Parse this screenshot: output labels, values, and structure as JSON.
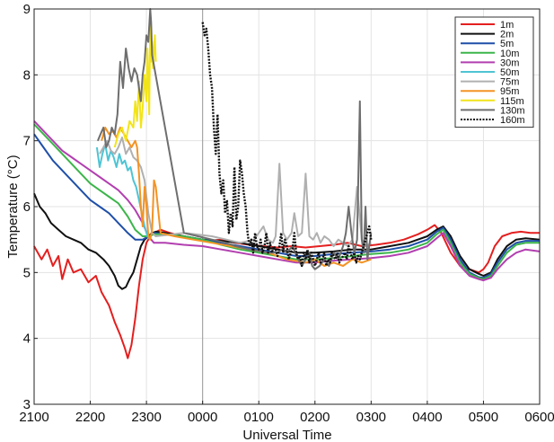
{
  "chart_data": {
    "type": "line",
    "xlabel": "Universal Time",
    "ylabel": "Temperature (°C)",
    "xlim": [
      0,
      540
    ],
    "ylim": [
      3,
      9
    ],
    "grid": true,
    "legend_placement": "top-right",
    "x_unit": "minutes after 2100 UT",
    "x_ticks": [
      {
        "value": 0,
        "label": "2100"
      },
      {
        "value": 60,
        "label": "2200"
      },
      {
        "value": 120,
        "label": "2300"
      },
      {
        "value": 180,
        "label": "0000"
      },
      {
        "value": 240,
        "label": "0100"
      },
      {
        "value": 300,
        "label": "0200"
      },
      {
        "value": 360,
        "label": "0300"
      },
      {
        "value": 420,
        "label": "0400"
      },
      {
        "value": 480,
        "label": "0500"
      },
      {
        "value": 540,
        "label": "0600"
      }
    ],
    "y_ticks": [
      3,
      4,
      5,
      6,
      7,
      8,
      9
    ],
    "vline_x": 180,
    "series": [
      {
        "name": "1m",
        "color": "#e41f1f",
        "dashed": false,
        "x": [
          0,
          8,
          14,
          20,
          26,
          30,
          36,
          42,
          50,
          58,
          66,
          72,
          80,
          86,
          92,
          97,
          100,
          104,
          108,
          112,
          116,
          120,
          124,
          128,
          135,
          145,
          160,
          175,
          185,
          200,
          215,
          230,
          245,
          260,
          275,
          290,
          305,
          320,
          335,
          350,
          365,
          380,
          395,
          410,
          420,
          428,
          435,
          445,
          455,
          465,
          475,
          480,
          485,
          492,
          500,
          510,
          520,
          530,
          540
        ],
        "y": [
          5.4,
          5.2,
          5.35,
          5.1,
          5.25,
          4.9,
          5.2,
          5.0,
          5.05,
          4.85,
          4.95,
          4.7,
          4.5,
          4.25,
          4.05,
          3.85,
          3.7,
          3.9,
          4.3,
          4.8,
          5.2,
          5.45,
          5.55,
          5.6,
          5.65,
          5.6,
          5.55,
          5.5,
          5.48,
          5.5,
          5.45,
          5.42,
          5.4,
          5.38,
          5.4,
          5.38,
          5.4,
          5.42,
          5.45,
          5.4,
          5.42,
          5.45,
          5.5,
          5.58,
          5.65,
          5.72,
          5.6,
          5.3,
          5.1,
          5.05,
          5.0,
          5.05,
          5.15,
          5.4,
          5.55,
          5.6,
          5.62,
          5.6,
          5.6
        ]
      },
      {
        "name": "2m",
        "color": "#111111",
        "dashed": false,
        "x": [
          0,
          6,
          12,
          18,
          26,
          34,
          42,
          50,
          58,
          66,
          74,
          80,
          86,
          90,
          94,
          98,
          102,
          106,
          110,
          114,
          118,
          122,
          126,
          130,
          140,
          160,
          180,
          200,
          220,
          240,
          260,
          280,
          300,
          320,
          340,
          360,
          380,
          400,
          420,
          430,
          437,
          445,
          455,
          465,
          475,
          480,
          488,
          495,
          505,
          515,
          525,
          540
        ],
        "y": [
          6.2,
          6.0,
          5.9,
          5.75,
          5.65,
          5.55,
          5.5,
          5.45,
          5.35,
          5.3,
          5.2,
          5.1,
          4.95,
          4.8,
          4.75,
          4.78,
          4.9,
          5.0,
          5.2,
          5.4,
          5.5,
          5.55,
          5.6,
          5.62,
          5.6,
          5.55,
          5.5,
          5.48,
          5.45,
          5.4,
          5.35,
          5.3,
          5.3,
          5.32,
          5.35,
          5.35,
          5.4,
          5.45,
          5.55,
          5.65,
          5.7,
          5.55,
          5.25,
          5.05,
          4.98,
          4.95,
          5.0,
          5.2,
          5.4,
          5.5,
          5.52,
          5.5
        ]
      },
      {
        "name": "5m",
        "color": "#1f4fa8",
        "dashed": false,
        "x": [
          0,
          10,
          20,
          30,
          40,
          50,
          60,
          70,
          80,
          90,
          100,
          108,
          116,
          122,
          128,
          140,
          160,
          180,
          200,
          220,
          240,
          260,
          280,
          300,
          320,
          340,
          360,
          380,
          400,
          420,
          430,
          437,
          445,
          455,
          465,
          475,
          480,
          488,
          495,
          505,
          515,
          525,
          540
        ],
        "y": [
          7.1,
          6.9,
          6.7,
          6.55,
          6.4,
          6.25,
          6.1,
          6.0,
          5.9,
          5.75,
          5.6,
          5.5,
          5.5,
          5.55,
          5.6,
          5.58,
          5.55,
          5.5,
          5.45,
          5.4,
          5.35,
          5.3,
          5.25,
          5.25,
          5.28,
          5.3,
          5.32,
          5.35,
          5.4,
          5.5,
          5.62,
          5.68,
          5.5,
          5.2,
          5.0,
          4.93,
          4.92,
          4.98,
          5.15,
          5.35,
          5.45,
          5.48,
          5.48
        ]
      },
      {
        "name": "10m",
        "color": "#3cb54a",
        "dashed": false,
        "x": [
          0,
          10,
          20,
          30,
          40,
          50,
          60,
          70,
          80,
          90,
          100,
          108,
          116,
          122,
          128,
          140,
          160,
          180,
          200,
          220,
          240,
          260,
          280,
          300,
          320,
          340,
          360,
          380,
          400,
          420,
          430,
          437,
          445,
          455,
          465,
          475,
          480,
          488,
          495,
          505,
          515,
          525,
          540
        ],
        "y": [
          7.25,
          7.1,
          6.95,
          6.8,
          6.65,
          6.5,
          6.35,
          6.25,
          6.15,
          6.05,
          5.85,
          5.65,
          5.55,
          5.55,
          5.58,
          5.58,
          5.55,
          5.5,
          5.42,
          5.35,
          5.3,
          5.25,
          5.2,
          5.2,
          5.22,
          5.25,
          5.28,
          5.3,
          5.35,
          5.45,
          5.58,
          5.65,
          5.45,
          5.15,
          4.98,
          4.92,
          4.9,
          4.95,
          5.1,
          5.3,
          5.42,
          5.45,
          5.45
        ]
      },
      {
        "name": "30m",
        "color": "#b23fb0",
        "dashed": false,
        "x": [
          0,
          10,
          20,
          30,
          40,
          50,
          60,
          70,
          80,
          90,
          100,
          108,
          116,
          122,
          128,
          140,
          160,
          180,
          200,
          220,
          240,
          260,
          280,
          300,
          320,
          340,
          360,
          380,
          400,
          420,
          430,
          437,
          445,
          455,
          465,
          475,
          480,
          488,
          495,
          505,
          515,
          525,
          540
        ],
        "y": [
          7.3,
          7.15,
          7.0,
          6.85,
          6.75,
          6.65,
          6.55,
          6.45,
          6.35,
          6.25,
          6.1,
          5.95,
          5.75,
          5.55,
          5.45,
          5.45,
          5.42,
          5.4,
          5.35,
          5.3,
          5.25,
          5.2,
          5.15,
          5.15,
          5.18,
          5.2,
          5.22,
          5.25,
          5.3,
          5.4,
          5.52,
          5.6,
          5.4,
          5.1,
          4.95,
          4.9,
          4.88,
          4.92,
          5.05,
          5.2,
          5.3,
          5.35,
          5.32
        ]
      },
      {
        "name": "50m",
        "color": "#4fc4d4",
        "dashed": false,
        "x": [
          67,
          70,
          73,
          76,
          79,
          82,
          85,
          88,
          91,
          94,
          97,
          100,
          103,
          106,
          109,
          112,
          115,
          118,
          121,
          124
        ],
        "y": [
          6.9,
          6.6,
          6.8,
          6.95,
          6.7,
          6.85,
          6.75,
          6.6,
          6.8,
          6.65,
          6.7,
          6.55,
          6.6,
          6.4,
          6.3,
          6.1,
          5.9,
          5.7,
          5.55,
          5.5
        ]
      },
      {
        "name": "75m",
        "color": "#b0b0b0",
        "dashed": false,
        "x": [
          70,
          74,
          78,
          82,
          86,
          90,
          94,
          98,
          102,
          106,
          110,
          114,
          118,
          122,
          126,
          130,
          160,
          190,
          220,
          235,
          240,
          245,
          250,
          255,
          258,
          262,
          266,
          270,
          275,
          278,
          282,
          286,
          290,
          294,
          298,
          302,
          306,
          310,
          315,
          320,
          325,
          330,
          335,
          340,
          345,
          350,
          355,
          360
        ],
        "y": [
          6.8,
          6.9,
          7.0,
          6.85,
          6.8,
          6.9,
          7.05,
          6.8,
          6.9,
          6.75,
          6.7,
          6.6,
          6.4,
          5.9,
          5.6,
          5.55,
          5.6,
          5.55,
          5.45,
          5.5,
          5.6,
          5.7,
          5.5,
          5.45,
          5.55,
          6.65,
          5.6,
          5.5,
          5.6,
          5.9,
          5.55,
          5.6,
          6.5,
          5.55,
          5.5,
          5.6,
          5.45,
          5.55,
          5.5,
          5.4,
          5.5,
          5.45,
          5.4,
          5.5,
          6.3,
          5.5,
          5.4,
          5.45
        ]
      },
      {
        "name": "95m",
        "color": "#f39325",
        "dashed": false,
        "x": [
          72,
          76,
          80,
          84,
          88,
          92,
          96,
          100,
          104,
          106,
          108,
          110,
          112,
          114,
          116,
          118,
          120,
          122,
          124,
          126,
          128,
          130,
          135,
          150,
          170,
          190,
          210,
          230,
          250,
          270,
          290,
          300,
          310,
          320,
          330,
          340,
          350,
          360
        ],
        "y": [
          7.0,
          7.2,
          7.1,
          7.15,
          7.05,
          7.2,
          7.1,
          7.0,
          6.9,
          6.95,
          7.0,
          6.9,
          6.5,
          6.0,
          5.7,
          6.3,
          6.0,
          5.55,
          5.5,
          5.65,
          6.4,
          6.3,
          5.6,
          5.55,
          5.5,
          5.45,
          5.4,
          5.35,
          5.3,
          5.2,
          5.15,
          5.2,
          5.1,
          5.15,
          5.1,
          5.2,
          5.15,
          5.2
        ]
      },
      {
        "name": "115m",
        "color": "#f2e41a",
        "dashed": false,
        "x": [
          86,
          90,
          94,
          98,
          102,
          106,
          108,
          110,
          112,
          114,
          116,
          118,
          120,
          121,
          122,
          123,
          124,
          125,
          126,
          127,
          128,
          129,
          130
        ],
        "y": [
          6.9,
          7.1,
          7.2,
          7.0,
          7.3,
          7.2,
          7.6,
          7.3,
          7.9,
          7.2,
          7.5,
          8.0,
          7.6,
          8.4,
          7.9,
          7.4,
          8.8,
          8.2,
          8.5,
          8.1,
          8.4,
          8.6,
          8.2
        ]
      },
      {
        "name": "130m",
        "color": "#6e6e6e",
        "dashed": false,
        "x": [
          68,
          71,
          74,
          77,
          80,
          83,
          86,
          89,
          92,
          95,
          98,
          101,
          104,
          107,
          110,
          112,
          114,
          116,
          118,
          120,
          122,
          124,
          125,
          126,
          160,
          175,
          190,
          205,
          215,
          230,
          250,
          260,
          265,
          270,
          273,
          276,
          279,
          282,
          286,
          290,
          294,
          297,
          300,
          305,
          310,
          315,
          320,
          325,
          330,
          333,
          336,
          339,
          342,
          345,
          348,
          350,
          352,
          354,
          356,
          358,
          360
        ],
        "y": [
          7.0,
          7.1,
          7.2,
          6.9,
          7.0,
          7.2,
          7.1,
          7.4,
          8.2,
          7.8,
          8.4,
          8.1,
          7.9,
          8.1,
          8.0,
          7.8,
          7.6,
          8.0,
          8.2,
          8.6,
          8.5,
          9.0,
          8.8,
          8.3,
          5.6,
          5.55,
          5.5,
          5.45,
          5.4,
          5.35,
          5.3,
          5.3,
          5.35,
          5.3,
          5.35,
          5.4,
          5.3,
          5.2,
          5.1,
          5.2,
          5.3,
          5.1,
          5.05,
          5.1,
          5.2,
          5.1,
          5.3,
          5.2,
          5.4,
          5.6,
          6.0,
          5.6,
          5.3,
          5.5,
          7.6,
          5.5,
          5.3,
          6.0,
          5.2,
          5.4,
          5.6
        ]
      },
      {
        "name": "160m",
        "color": "#111111",
        "dashed": true,
        "x": [
          180,
          182,
          184,
          186,
          188,
          190,
          192,
          194,
          196,
          198,
          200,
          202,
          204,
          206,
          208,
          210,
          212,
          214,
          216,
          218,
          220,
          222,
          224,
          226,
          228,
          230,
          232,
          234,
          236,
          238,
          240,
          242,
          244,
          246,
          248,
          250,
          252,
          254,
          256,
          258,
          260,
          262,
          264,
          266,
          268,
          270,
          272,
          274,
          276,
          278,
          280,
          282,
          284,
          286,
          288,
          290,
          292,
          294,
          296,
          298,
          300,
          302,
          304,
          306,
          308,
          310,
          312,
          314,
          316,
          318,
          320,
          322,
          324,
          326,
          328,
          330,
          332,
          334,
          336,
          338,
          340,
          342,
          344,
          346,
          348,
          350,
          352,
          354,
          356,
          358,
          360
        ],
        "y": [
          8.8,
          8.6,
          8.7,
          8.4,
          8.0,
          7.8,
          7.2,
          6.8,
          7.4,
          6.5,
          6.2,
          6.4,
          5.9,
          6.1,
          5.6,
          5.9,
          5.7,
          6.6,
          5.8,
          6.0,
          6.7,
          6.5,
          6.2,
          6.0,
          5.6,
          5.4,
          5.5,
          5.3,
          5.6,
          5.4,
          5.35,
          5.5,
          5.3,
          5.4,
          5.6,
          5.3,
          5.45,
          5.3,
          5.4,
          5.35,
          5.25,
          5.4,
          5.6,
          5.3,
          5.5,
          5.4,
          5.2,
          5.3,
          5.35,
          5.6,
          5.3,
          5.2,
          5.25,
          5.1,
          5.3,
          5.2,
          5.35,
          5.15,
          5.3,
          5.2,
          5.1,
          5.2,
          5.3,
          5.15,
          5.2,
          5.3,
          5.1,
          5.2,
          5.15,
          5.3,
          5.25,
          5.2,
          5.3,
          5.15,
          5.2,
          5.25,
          5.3,
          5.2,
          5.4,
          5.3,
          5.2,
          5.3,
          5.15,
          5.25,
          5.2,
          5.3,
          5.4,
          5.5,
          5.6,
          5.7,
          5.5
        ]
      }
    ]
  }
}
